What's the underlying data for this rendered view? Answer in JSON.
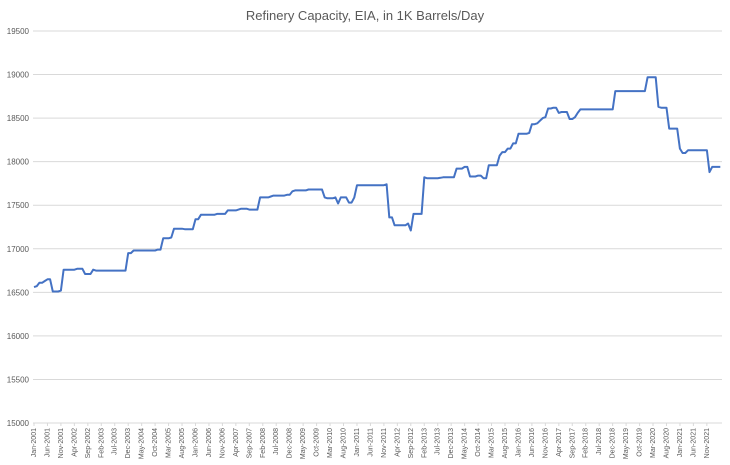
{
  "chart_data": {
    "type": "line",
    "title": "Refinery Capacity, EIA, in 1K Barrels/Day",
    "xlabel": "",
    "ylabel": "",
    "ylim": [
      15000,
      19500
    ],
    "yticks": [
      "15000",
      "15500",
      "16000",
      "16500",
      "17000",
      "17500",
      "18000",
      "18500",
      "19000",
      "19500"
    ],
    "xticks": [
      "Jan-2001",
      "Jun-2001",
      "Nov-2001",
      "Apr-2002",
      "Sep-2002",
      "Feb-2003",
      "Jul-2003",
      "Dec-2003",
      "May-2004",
      "Oct-2004",
      "Mar-2005",
      "Aug-2005",
      "Jan-2006",
      "Jun-2006",
      "Nov-2006",
      "Apr-2007",
      "Sep-2007",
      "Feb-2008",
      "Jul-2008",
      "Dec-2008",
      "May-2009",
      "Oct-2009",
      "Mar-2010",
      "Aug-2010",
      "Jan-2011",
      "Jun-2011",
      "Nov-2011",
      "Apr-2012",
      "Sep-2012",
      "Feb-2013",
      "Jul-2013",
      "Dec-2013",
      "May-2014",
      "Oct-2014",
      "Mar-2015",
      "Aug-2015",
      "Jan-2016",
      "Jun-2016",
      "Nov-2016",
      "Apr-2017",
      "Sep-2017",
      "Feb-2018",
      "Jul-2018",
      "Dec-2018",
      "May-2019",
      "Oct-2019",
      "Mar-2020",
      "Aug-2020",
      "Jan-2021",
      "Jun-2021",
      "Nov-2021"
    ],
    "grid": true,
    "legend": "none",
    "color": "#4472c4",
    "series": [
      {
        "points": [
          [
            "Jan-2001",
            16560
          ],
          [
            "Feb-2001",
            16570
          ],
          [
            "Mar-2001",
            16610
          ],
          [
            "Apr-2001",
            16610
          ],
          [
            "May-2001",
            16630
          ],
          [
            "Jun-2001",
            16650
          ],
          [
            "Jul-2001",
            16650
          ],
          [
            "Aug-2001",
            16510
          ],
          [
            "Sep-2001",
            16510
          ],
          [
            "Oct-2001",
            16510
          ],
          [
            "Nov-2001",
            16520
          ],
          [
            "Dec-2001",
            16760
          ],
          [
            "Jan-2002",
            16760
          ],
          [
            "Feb-2002",
            16760
          ],
          [
            "Mar-2002",
            16760
          ],
          [
            "Apr-2002",
            16760
          ],
          [
            "May-2002",
            16770
          ],
          [
            "Jun-2002",
            16770
          ],
          [
            "Jul-2002",
            16770
          ],
          [
            "Aug-2002",
            16710
          ],
          [
            "Sep-2002",
            16710
          ],
          [
            "Oct-2002",
            16710
          ],
          [
            "Nov-2002",
            16760
          ],
          [
            "Dec-2002",
            16750
          ],
          [
            "Jan-2003",
            16750
          ],
          [
            "Feb-2003",
            16750
          ],
          [
            "Mar-2003",
            16750
          ],
          [
            "Apr-2003",
            16750
          ],
          [
            "May-2003",
            16750
          ],
          [
            "Jun-2003",
            16750
          ],
          [
            "Jul-2003",
            16750
          ],
          [
            "Aug-2003",
            16750
          ],
          [
            "Sep-2003",
            16750
          ],
          [
            "Oct-2003",
            16750
          ],
          [
            "Nov-2003",
            16750
          ],
          [
            "Dec-2003",
            16950
          ],
          [
            "Jan-2004",
            16950
          ],
          [
            "Feb-2004",
            16980
          ],
          [
            "Mar-2004",
            16980
          ],
          [
            "Apr-2004",
            16980
          ],
          [
            "May-2004",
            16980
          ],
          [
            "Jun-2004",
            16980
          ],
          [
            "Jul-2004",
            16980
          ],
          [
            "Aug-2004",
            16980
          ],
          [
            "Sep-2004",
            16980
          ],
          [
            "Oct-2004",
            16980
          ],
          [
            "Nov-2004",
            16990
          ],
          [
            "Dec-2004",
            16990
          ],
          [
            "Jan-2005",
            17120
          ],
          [
            "Feb-2005",
            17120
          ],
          [
            "Mar-2005",
            17120
          ],
          [
            "Apr-2005",
            17130
          ],
          [
            "May-2005",
            17230
          ],
          [
            "Jun-2005",
            17230
          ],
          [
            "Jul-2005",
            17230
          ],
          [
            "Aug-2005",
            17230
          ],
          [
            "Sep-2005",
            17225
          ],
          [
            "Oct-2005",
            17225
          ],
          [
            "Nov-2005",
            17225
          ],
          [
            "Dec-2005",
            17225
          ],
          [
            "Jan-2006",
            17340
          ],
          [
            "Feb-2006",
            17340
          ],
          [
            "Mar-2006",
            17390
          ],
          [
            "Apr-2006",
            17390
          ],
          [
            "May-2006",
            17390
          ],
          [
            "Jun-2006",
            17390
          ],
          [
            "Jul-2006",
            17390
          ],
          [
            "Aug-2006",
            17390
          ],
          [
            "Sep-2006",
            17400
          ],
          [
            "Oct-2006",
            17400
          ],
          [
            "Nov-2006",
            17400
          ],
          [
            "Dec-2006",
            17400
          ],
          [
            "Jan-2007",
            17440
          ],
          [
            "Feb-2007",
            17440
          ],
          [
            "Mar-2007",
            17440
          ],
          [
            "Apr-2007",
            17440
          ],
          [
            "May-2007",
            17450
          ],
          [
            "Jun-2007",
            17460
          ],
          [
            "Jul-2007",
            17460
          ],
          [
            "Aug-2007",
            17460
          ],
          [
            "Sep-2007",
            17450
          ],
          [
            "Oct-2007",
            17450
          ],
          [
            "Nov-2007",
            17450
          ],
          [
            "Dec-2007",
            17450
          ],
          [
            "Jan-2008",
            17590
          ],
          [
            "Feb-2008",
            17590
          ],
          [
            "Mar-2008",
            17590
          ],
          [
            "Apr-2008",
            17590
          ],
          [
            "May-2008",
            17600
          ],
          [
            "Jun-2008",
            17610
          ],
          [
            "Jul-2008",
            17610
          ],
          [
            "Aug-2008",
            17610
          ],
          [
            "Sep-2008",
            17610
          ],
          [
            "Oct-2008",
            17610
          ],
          [
            "Nov-2008",
            17620
          ],
          [
            "Dec-2008",
            17620
          ],
          [
            "Jan-2009",
            17660
          ],
          [
            "Feb-2009",
            17670
          ],
          [
            "Mar-2009",
            17670
          ],
          [
            "Apr-2009",
            17670
          ],
          [
            "May-2009",
            17670
          ],
          [
            "Jun-2009",
            17670
          ],
          [
            "Jul-2009",
            17680
          ],
          [
            "Aug-2009",
            17680
          ],
          [
            "Sep-2009",
            17680
          ],
          [
            "Oct-2009",
            17680
          ],
          [
            "Nov-2009",
            17680
          ],
          [
            "Dec-2009",
            17680
          ],
          [
            "Jan-2010",
            17590
          ],
          [
            "Feb-2010",
            17580
          ],
          [
            "Mar-2010",
            17580
          ],
          [
            "Apr-2010",
            17580
          ],
          [
            "May-2010",
            17590
          ],
          [
            "Jun-2010",
            17520
          ],
          [
            "Jul-2010",
            17590
          ],
          [
            "Aug-2010",
            17590
          ],
          [
            "Sep-2010",
            17590
          ],
          [
            "Oct-2010",
            17530
          ],
          [
            "Nov-2010",
            17530
          ],
          [
            "Dec-2010",
            17590
          ],
          [
            "Jan-2011",
            17730
          ],
          [
            "Feb-2011",
            17730
          ],
          [
            "Mar-2011",
            17730
          ],
          [
            "Apr-2011",
            17730
          ],
          [
            "May-2011",
            17730
          ],
          [
            "Jun-2011",
            17730
          ],
          [
            "Jul-2011",
            17730
          ],
          [
            "Aug-2011",
            17730
          ],
          [
            "Sep-2011",
            17730
          ],
          [
            "Oct-2011",
            17730
          ],
          [
            "Nov-2011",
            17730
          ],
          [
            "Dec-2011",
            17740
          ],
          [
            "Jan-2012",
            17360
          ],
          [
            "Feb-2012",
            17360
          ],
          [
            "Mar-2012",
            17270
          ],
          [
            "Apr-2012",
            17270
          ],
          [
            "May-2012",
            17270
          ],
          [
            "Jun-2012",
            17270
          ],
          [
            "Jul-2012",
            17270
          ],
          [
            "Aug-2012",
            17290
          ],
          [
            "Sep-2012",
            17210
          ],
          [
            "Oct-2012",
            17400
          ],
          [
            "Nov-2012",
            17400
          ],
          [
            "Dec-2012",
            17400
          ],
          [
            "Jan-2013",
            17400
          ],
          [
            "Feb-2013",
            17820
          ],
          [
            "Mar-2013",
            17810
          ],
          [
            "Apr-2013",
            17810
          ],
          [
            "May-2013",
            17810
          ],
          [
            "Jun-2013",
            17810
          ],
          [
            "Jul-2013",
            17810
          ],
          [
            "Aug-2013",
            17815
          ],
          [
            "Sep-2013",
            17820
          ],
          [
            "Oct-2013",
            17820
          ],
          [
            "Nov-2013",
            17820
          ],
          [
            "Dec-2013",
            17820
          ],
          [
            "Jan-2014",
            17820
          ],
          [
            "Feb-2014",
            17920
          ],
          [
            "Mar-2014",
            17920
          ],
          [
            "Apr-2014",
            17920
          ],
          [
            "May-2014",
            17940
          ],
          [
            "Jun-2014",
            17940
          ],
          [
            "Jul-2014",
            17830
          ],
          [
            "Aug-2014",
            17830
          ],
          [
            "Sep-2014",
            17830
          ],
          [
            "Oct-2014",
            17840
          ],
          [
            "Nov-2014",
            17840
          ],
          [
            "Dec-2014",
            17810
          ],
          [
            "Jan-2015",
            17810
          ],
          [
            "Feb-2015",
            17960
          ],
          [
            "Mar-2015",
            17960
          ],
          [
            "Apr-2015",
            17960
          ],
          [
            "May-2015",
            17960
          ],
          [
            "Jun-2015",
            18070
          ],
          [
            "Jul-2015",
            18110
          ],
          [
            "Aug-2015",
            18110
          ],
          [
            "Sep-2015",
            18150
          ],
          [
            "Oct-2015",
            18150
          ],
          [
            "Nov-2015",
            18210
          ],
          [
            "Dec-2015",
            18210
          ],
          [
            "Jan-2016",
            18320
          ],
          [
            "Feb-2016",
            18320
          ],
          [
            "Mar-2016",
            18320
          ],
          [
            "Apr-2016",
            18320
          ],
          [
            "May-2016",
            18330
          ],
          [
            "Jun-2016",
            18430
          ],
          [
            "Jul-2016",
            18430
          ],
          [
            "Aug-2016",
            18440
          ],
          [
            "Sep-2016",
            18470
          ],
          [
            "Oct-2016",
            18500
          ],
          [
            "Nov-2016",
            18510
          ],
          [
            "Dec-2016",
            18610
          ],
          [
            "Jan-2017",
            18610
          ],
          [
            "Feb-2017",
            18620
          ],
          [
            "Mar-2017",
            18620
          ],
          [
            "Apr-2017",
            18560
          ],
          [
            "May-2017",
            18570
          ],
          [
            "Jun-2017",
            18570
          ],
          [
            "Jul-2017",
            18570
          ],
          [
            "Aug-2017",
            18490
          ],
          [
            "Sep-2017",
            18490
          ],
          [
            "Oct-2017",
            18510
          ],
          [
            "Nov-2017",
            18560
          ],
          [
            "Dec-2017",
            18600
          ],
          [
            "Jan-2018",
            18600
          ],
          [
            "Feb-2018",
            18600
          ],
          [
            "Mar-2018",
            18600
          ],
          [
            "Apr-2018",
            18600
          ],
          [
            "May-2018",
            18600
          ],
          [
            "Jun-2018",
            18600
          ],
          [
            "Jul-2018",
            18600
          ],
          [
            "Aug-2018",
            18600
          ],
          [
            "Sep-2018",
            18600
          ],
          [
            "Oct-2018",
            18600
          ],
          [
            "Nov-2018",
            18600
          ],
          [
            "Dec-2018",
            18600
          ],
          [
            "Jan-2019",
            18810
          ],
          [
            "Feb-2019",
            18810
          ],
          [
            "Mar-2019",
            18810
          ],
          [
            "Apr-2019",
            18810
          ],
          [
            "May-2019",
            18810
          ],
          [
            "Jun-2019",
            18810
          ],
          [
            "Jul-2019",
            18810
          ],
          [
            "Aug-2019",
            18810
          ],
          [
            "Sep-2019",
            18810
          ],
          [
            "Oct-2019",
            18810
          ],
          [
            "Nov-2019",
            18810
          ],
          [
            "Dec-2019",
            18810
          ],
          [
            "Jan-2020",
            18970
          ],
          [
            "Feb-2020",
            18970
          ],
          [
            "Mar-2020",
            18970
          ],
          [
            "Apr-2020",
            18970
          ],
          [
            "May-2020",
            18630
          ],
          [
            "Jun-2020",
            18620
          ],
          [
            "Jul-2020",
            18620
          ],
          [
            "Aug-2020",
            18620
          ],
          [
            "Sep-2020",
            18380
          ],
          [
            "Oct-2020",
            18380
          ],
          [
            "Nov-2020",
            18380
          ],
          [
            "Dec-2020",
            18380
          ],
          [
            "Jan-2021",
            18150
          ],
          [
            "Feb-2021",
            18100
          ],
          [
            "Mar-2021",
            18100
          ],
          [
            "Apr-2021",
            18130
          ],
          [
            "May-2021",
            18130
          ],
          [
            "Jun-2021",
            18130
          ],
          [
            "Jul-2021",
            18130
          ],
          [
            "Aug-2021",
            18130
          ],
          [
            "Sep-2021",
            18130
          ],
          [
            "Oct-2021",
            18130
          ],
          [
            "Nov-2021",
            18130
          ],
          [
            "Dec-2021",
            17880
          ],
          [
            "Jan-2022",
            17940
          ],
          [
            "Feb-2022",
            17940
          ],
          [
            "Mar-2022",
            17940
          ],
          [
            "Apr-2022",
            17940
          ]
        ]
      }
    ]
  }
}
